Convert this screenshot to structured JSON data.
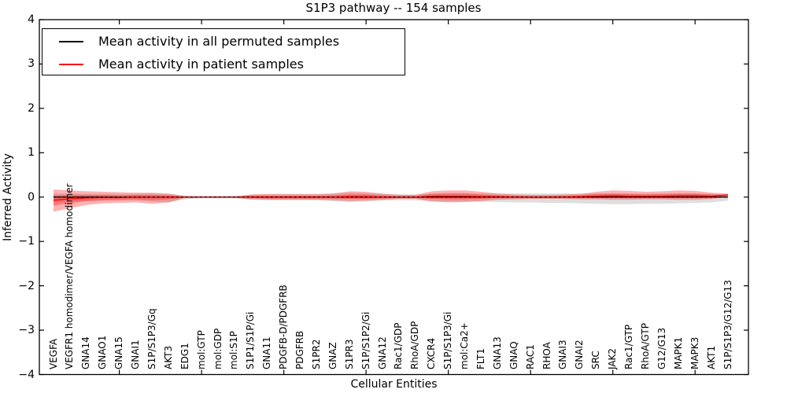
{
  "chart_data": {
    "type": "line",
    "title": "S1P3 pathway -- 154 samples",
    "xlabel": "Cellular Entities",
    "ylabel": "Inferred Activity",
    "ylim": [
      -4,
      4
    ],
    "grid": false,
    "yticks": [
      4,
      3,
      2,
      1,
      0,
      -1,
      -2,
      -3,
      -4
    ],
    "ytick_labels": [
      "4",
      "3",
      "2",
      "1",
      "0",
      "−1",
      "−2",
      "−3",
      "−4"
    ],
    "xtick_marks_at_indices": [
      4,
      9,
      14,
      19,
      24,
      29,
      34,
      39
    ],
    "categories": [
      "VEGFA",
      "VEGFR1 homodimer/VEGFA homodimer",
      "GNA14",
      "GNAO1",
      "GNA15",
      "GNAI1",
      "S1P/S1P3/Gq",
      "AKT3",
      "EDG1",
      "mol:GTP",
      "mol:GDP",
      "mol:S1P",
      "S1P1/S1P/Gi",
      "GNA11",
      "PDGFB-D/PDGFRB",
      "PDGFRB",
      "S1PR2",
      "GNAZ",
      "S1PR3",
      "S1P/S1P2/Gi",
      "GNA12",
      "Rac1/GDP",
      "RhoA/GDP",
      "CXCR4",
      "S1P/S1P3/Gi",
      "mol:Ca2+",
      "FLT1",
      "GNA13",
      "GNAQ",
      "RAC1",
      "RHOA",
      "GNAI3",
      "GNAI2",
      "SRC",
      "JAK2",
      "Rac1/GTP",
      "RhoA/GTP",
      "G12/G13",
      "MAPK1",
      "MAPK3",
      "AKT1",
      "S1P/S1P3/G12/G13"
    ],
    "legend": {
      "position": "upper left",
      "items": [
        {
          "label": "Mean activity in all permuted samples",
          "color": "#000000"
        },
        {
          "label": "Mean activity in patient samples",
          "color": "#ff0000"
        }
      ]
    },
    "series": [
      {
        "name": "Mean activity in all permuted samples",
        "color": "#000000",
        "style": "solid+dashed",
        "values": [
          0,
          0,
          0,
          0,
          0,
          0,
          0,
          0,
          0,
          0,
          0,
          0,
          0,
          0,
          0,
          0,
          0,
          0,
          0,
          0,
          0,
          0,
          0,
          0,
          0,
          0,
          0,
          0,
          0,
          0,
          0,
          0,
          0,
          0,
          0,
          0,
          0,
          0,
          0,
          0,
          0,
          0
        ]
      },
      {
        "name": "Mean activity in patient samples",
        "color": "#ff0000",
        "style": "solid",
        "values": [
          -0.07,
          -0.04,
          -0.02,
          -0.01,
          -0.01,
          0,
          0,
          0,
          0,
          0,
          0,
          0,
          0,
          0,
          0,
          0,
          0,
          0,
          0.01,
          0.01,
          0,
          0,
          0,
          0.02,
          0.02,
          0.02,
          0.01,
          0.01,
          0,
          0,
          0,
          0,
          0.01,
          0.02,
          0.03,
          0.02,
          0.02,
          0.02,
          0.03,
          0.03,
          0.02,
          0.05
        ]
      }
    ],
    "bands": [
      {
        "name": "permuted-spread",
        "color": "#888888",
        "opacity": 0.28,
        "upper": [
          0.08,
          0.08,
          0.07,
          0.07,
          0.07,
          0.07,
          0.08,
          0.07,
          0.04,
          0.03,
          0.03,
          0.03,
          0.05,
          0.06,
          0.06,
          0.06,
          0.06,
          0.08,
          0.1,
          0.09,
          0.07,
          0.06,
          0.06,
          0.08,
          0.09,
          0.09,
          0.08,
          0.08,
          0.08,
          0.08,
          0.08,
          0.08,
          0.08,
          0.08,
          0.08,
          0.08,
          0.08,
          0.08,
          0.08,
          0.08,
          0.07,
          0.05
        ],
        "lower": [
          -0.12,
          -0.1,
          -0.09,
          -0.08,
          -0.08,
          -0.08,
          -0.1,
          -0.12,
          -0.05,
          -0.03,
          -0.03,
          -0.03,
          -0.06,
          -0.07,
          -0.07,
          -0.07,
          -0.07,
          -0.09,
          -0.11,
          -0.1,
          -0.08,
          -0.07,
          -0.07,
          -0.09,
          -0.1,
          -0.1,
          -0.1,
          -0.11,
          -0.12,
          -0.12,
          -0.13,
          -0.13,
          -0.14,
          -0.15,
          -0.16,
          -0.16,
          -0.15,
          -0.15,
          -0.14,
          -0.13,
          -0.12,
          -0.08
        ]
      },
      {
        "name": "patient-spread",
        "color": "#ff0000",
        "opacity": 0.3,
        "upper": [
          0.17,
          0.15,
          0.13,
          0.12,
          0.11,
          0.1,
          0.1,
          0.08,
          0.02,
          0.01,
          0.01,
          0.01,
          0.06,
          0.07,
          0.07,
          0.07,
          0.07,
          0.08,
          0.13,
          0.12,
          0.08,
          0.05,
          0.05,
          0.13,
          0.15,
          0.15,
          0.12,
          0.08,
          0.06,
          0.05,
          0.05,
          0.06,
          0.07,
          0.12,
          0.15,
          0.14,
          0.12,
          0.13,
          0.15,
          0.14,
          0.1,
          0.08
        ],
        "lower": [
          -0.33,
          -0.25,
          -0.18,
          -0.14,
          -0.13,
          -0.12,
          -0.15,
          -0.12,
          -0.02,
          -0.01,
          -0.01,
          -0.01,
          -0.05,
          -0.06,
          -0.06,
          -0.06,
          -0.06,
          -0.07,
          -0.09,
          -0.08,
          -0.06,
          -0.04,
          -0.04,
          -0.1,
          -0.12,
          -0.11,
          -0.09,
          -0.06,
          -0.05,
          -0.04,
          -0.04,
          -0.04,
          -0.05,
          -0.05,
          -0.06,
          -0.06,
          -0.05,
          -0.05,
          -0.06,
          -0.06,
          -0.04,
          0.0
        ]
      },
      {
        "name": "patient-spread-inner",
        "color": "#ff0000",
        "opacity": 0.3,
        "upper": [
          0.04,
          0.05,
          0.05,
          0.05,
          0.04,
          0.05,
          0.05,
          0.04,
          0.01,
          0.005,
          0.005,
          0.005,
          0.03,
          0.03,
          0.03,
          0.03,
          0.03,
          0.04,
          0.06,
          0.06,
          0.04,
          0.02,
          0.02,
          0.07,
          0.08,
          0.08,
          0.06,
          0.04,
          0.03,
          0.02,
          0.02,
          0.03,
          0.04,
          0.07,
          0.08,
          0.07,
          0.06,
          0.07,
          0.08,
          0.08,
          0.06,
          0.06
        ],
        "lower": [
          -0.19,
          -0.14,
          -0.09,
          -0.07,
          -0.06,
          -0.05,
          -0.07,
          -0.05,
          -0.01,
          -0.005,
          -0.005,
          -0.005,
          -0.02,
          -0.03,
          -0.03,
          -0.03,
          -0.03,
          -0.03,
          -0.04,
          -0.04,
          -0.03,
          -0.02,
          -0.02,
          -0.04,
          -0.05,
          -0.05,
          -0.04,
          -0.02,
          -0.02,
          -0.02,
          -0.02,
          -0.02,
          -0.02,
          -0.02,
          -0.02,
          -0.02,
          -0.02,
          -0.02,
          -0.02,
          -0.02,
          -0.01,
          0.02
        ]
      }
    ]
  }
}
